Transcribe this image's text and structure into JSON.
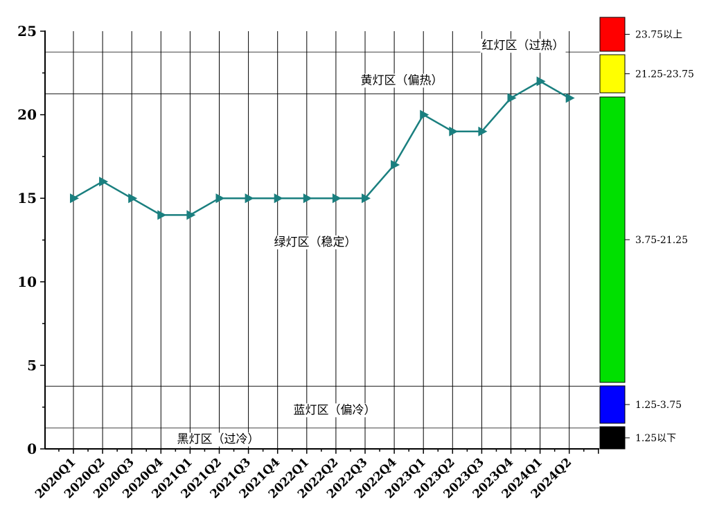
{
  "chart_data": {
    "type": "line",
    "categories": [
      "2020Q1",
      "2020Q2",
      "2020Q3",
      "2020Q4",
      "2021Q1",
      "2021Q2",
      "2021Q3",
      "2021Q4",
      "2022Q1",
      "2022Q2",
      "2022Q3",
      "2022Q4",
      "2023Q1",
      "2023Q2",
      "2023Q3",
      "2023Q4",
      "2024Q1",
      "2024Q2"
    ],
    "series": [
      {
        "values": [
          15,
          16,
          15,
          14,
          14,
          15,
          15,
          15,
          15,
          15,
          15,
          17,
          20,
          19,
          19,
          21,
          22,
          21
        ],
        "color": "#1a7f7f",
        "marker": "triangle-right"
      }
    ],
    "ylim": [
      0,
      25
    ],
    "yticks": [
      "0",
      "5",
      "10",
      "15",
      "20",
      "25"
    ],
    "grid": {
      "vertical": true,
      "horizontal": false
    },
    "zones": [
      {
        "label": "红灯区（过热）",
        "range_label": "23.75以上",
        "from": 23.75,
        "to": 25,
        "color": "#ff0000"
      },
      {
        "label": "黄灯区（偏热）",
        "range_label": "21.25-23.75",
        "from": 21.25,
        "to": 23.75,
        "color": "#ffff00"
      },
      {
        "label": "绿灯区（稳定）",
        "range_label": "3.75-21.25",
        "from": 3.75,
        "to": 21.25,
        "color": "#00e000"
      },
      {
        "label": "蓝灯区（偏冷）",
        "range_label": "1.25-3.75",
        "from": 1.25,
        "to": 3.75,
        "color": "#0000ff"
      },
      {
        "label": "黑灯区（过冷）",
        "range_label": "1.25以下",
        "from": 0,
        "to": 1.25,
        "color": "#000000"
      }
    ],
    "legend_position": "right"
  }
}
